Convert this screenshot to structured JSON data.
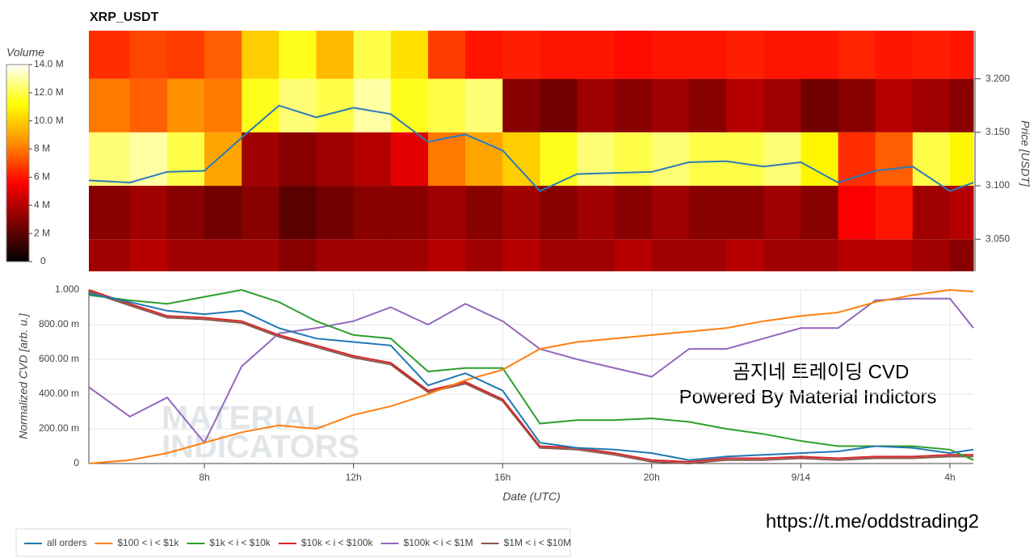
{
  "chart_data": [
    {
      "type": "heatmap",
      "title": "XRP_USDT",
      "y_label": "Price [USDT]",
      "colorbar_label": "Volume",
      "x_bins": [
        4.9,
        6,
        7,
        8,
        9,
        10,
        11,
        12,
        13,
        14,
        15,
        16,
        17,
        18,
        19,
        20,
        21,
        22,
        23,
        24,
        25,
        26,
        27,
        28,
        28.63
      ],
      "y_bins": [
        3.02,
        3.05,
        3.1,
        3.15,
        3.2,
        3.245
      ],
      "z": [
        [
          3.5,
          4,
          3.5,
          3.5,
          3.5,
          3,
          3.5,
          3.5,
          3.5,
          4,
          3.5,
          4,
          3.5,
          3.5,
          4,
          3.5,
          3.5,
          4,
          3.5,
          3.5,
          4,
          4,
          3.5,
          3
        ],
        [
          3,
          3.5,
          3,
          2.5,
          3,
          2,
          2.5,
          3,
          3,
          3.5,
          3,
          3.5,
          3,
          3.5,
          3,
          3.5,
          3,
          3,
          3.5,
          3,
          5.5,
          6,
          3.5,
          4
        ],
        [
          12.5,
          13,
          12,
          9,
          3.5,
          3,
          3.5,
          4,
          5,
          8,
          9,
          10,
          11.5,
          12.5,
          12,
          12.5,
          12,
          12,
          12.5,
          11,
          6.5,
          7.5,
          12,
          11
        ],
        [
          8,
          7.5,
          8.5,
          8,
          11.5,
          12.5,
          12,
          13,
          11.5,
          12,
          12.5,
          3,
          2.5,
          3.5,
          3,
          3.5,
          3,
          4,
          3.5,
          2.5,
          3,
          4,
          3.5,
          3
        ],
        [
          6.5,
          7,
          6.8,
          7.5,
          10,
          11.5,
          9.5,
          12,
          10.5,
          6.8,
          6,
          6.2,
          6,
          6,
          5.8,
          6,
          6,
          6.2,
          6,
          6,
          6.3,
          6,
          6.2,
          6
        ]
      ],
      "colormap": [
        "#000000",
        "#800000",
        "#ff0000",
        "#ff8c00",
        "#ffff00",
        "#ffffff"
      ],
      "clim": [
        0,
        14
      ],
      "cticks": [
        0,
        {
          "value": 2,
          "label": "2 M"
        },
        {
          "value": 4,
          "label": "4 M"
        },
        {
          "value": 6,
          "label": "6 M"
        },
        {
          "value": 8,
          "label": "8 M"
        },
        {
          "value": 10,
          "label": "10.0 M"
        },
        {
          "value": 12,
          "label": "12.0 M"
        },
        {
          "value": 14,
          "label": "14.0 M"
        }
      ],
      "x": [
        4.9,
        6,
        7,
        8,
        9,
        10,
        11,
        12,
        13,
        14,
        15,
        16,
        17,
        18,
        19,
        20,
        21,
        22,
        23,
        24,
        25,
        26,
        27,
        28,
        28.63
      ],
      "series": [
        {
          "color": "#2b7bb9",
          "values": [
            3.105,
            3.103,
            3.113,
            3.114,
            3.145,
            3.175,
            3.164,
            3.173,
            3.167,
            3.141,
            3.148,
            3.133,
            3.095,
            3.111,
            3.112,
            3.113,
            3.122,
            3.123,
            3.118,
            3.122,
            3.103,
            3.114,
            3.118,
            3.095,
            3.103
          ]
        }
      ],
      "xlim": [
        4.9,
        28.63
      ],
      "ylim": [
        3.02,
        3.245
      ],
      "yticks": [
        {
          "value": 3.05,
          "label": "3.050"
        },
        {
          "value": 3.1,
          "label": "3.100"
        },
        {
          "value": 3.15,
          "label": "3.150"
        },
        {
          "value": 3.2,
          "label": "3.200"
        }
      ]
    },
    {
      "type": "line",
      "x_label": "Date (UTC)",
      "y_label": "Normalized CVD [arb. u.]",
      "x": [
        4.9,
        6,
        7,
        8,
        9,
        10,
        11,
        12,
        13,
        14,
        15,
        16,
        17,
        18,
        19,
        20,
        21,
        22,
        23,
        24,
        25,
        26,
        27,
        28,
        28.63
      ],
      "series": [
        {
          "name": "all orders",
          "color": "#1f77b4",
          "values": [
            0.98,
            0.93,
            0.88,
            0.86,
            0.88,
            0.78,
            0.72,
            0.7,
            0.68,
            0.45,
            0.52,
            0.42,
            0.12,
            0.09,
            0.08,
            0.06,
            0.02,
            0.04,
            0.05,
            0.06,
            0.07,
            0.1,
            0.09,
            0.06,
            0.08
          ]
        },
        {
          "name": "$100 < i < $1k",
          "color": "#ff7f0e",
          "values": [
            0,
            0.02,
            0.06,
            0.12,
            0.18,
            0.22,
            0.2,
            0.28,
            0.33,
            0.4,
            0.48,
            0.54,
            0.66,
            0.7,
            0.72,
            0.74,
            0.76,
            0.78,
            0.82,
            0.85,
            0.87,
            0.93,
            0.97,
            1.0,
            0.99
          ]
        },
        {
          "name": "$1k < i < $10k",
          "color": "#2ca02c",
          "values": [
            0.97,
            0.94,
            0.92,
            0.96,
            1.0,
            0.93,
            0.82,
            0.74,
            0.72,
            0.53,
            0.55,
            0.55,
            0.23,
            0.25,
            0.25,
            0.26,
            0.24,
            0.2,
            0.17,
            0.13,
            0.1,
            0.1,
            0.1,
            0.08,
            0.02
          ]
        },
        {
          "name": "$10k < i < $100k",
          "color": "#d62728",
          "values": [
            1.0,
            0.92,
            0.85,
            0.84,
            0.82,
            0.74,
            0.68,
            0.62,
            0.58,
            0.42,
            0.47,
            0.37,
            0.1,
            0.09,
            0.06,
            0.02,
            0.01,
            0.03,
            0.03,
            0.04,
            0.03,
            0.04,
            0.04,
            0.05,
            0.05
          ]
        },
        {
          "name": "$100k < i < $1M",
          "color": "#9467bd",
          "values": [
            0.44,
            0.27,
            0.38,
            0.12,
            0.56,
            0.75,
            0.78,
            0.82,
            0.9,
            0.8,
            0.92,
            0.82,
            0.66,
            0.6,
            0.55,
            0.5,
            0.66,
            0.66,
            0.72,
            0.78,
            0.78,
            0.94,
            0.95,
            0.95,
            0.78
          ]
        },
        {
          "name": "$1M < i < $10M",
          "color": "#8c564b",
          "values": [
            0.99,
            0.91,
            0.84,
            0.83,
            0.81,
            0.73,
            0.67,
            0.61,
            0.57,
            0.41,
            0.46,
            0.36,
            0.09,
            0.08,
            0.05,
            0.01,
            0.0,
            0.02,
            0.02,
            0.03,
            0.02,
            0.03,
            0.03,
            0.04,
            0.04
          ]
        }
      ],
      "xlim": [
        4.9,
        28.63
      ],
      "xticks": [
        {
          "value": 8,
          "label": "8h"
        },
        {
          "value": 12,
          "label": "12h"
        },
        {
          "value": 16,
          "label": "16h"
        },
        {
          "value": 20,
          "label": "20h"
        },
        {
          "value": 24,
          "label": "9/14"
        },
        {
          "value": 28,
          "label": "4h"
        }
      ],
      "ylim": [
        0,
        1
      ],
      "yticks": [
        0,
        {
          "value": 0.2,
          "label": "200.00 m"
        },
        {
          "value": 0.4,
          "label": "400.00 m"
        },
        {
          "value": 0.6,
          "label": "600.00 m"
        },
        {
          "value": 0.8,
          "label": "800.00 m"
        },
        {
          "value": 1,
          "label": "1.000"
        }
      ],
      "grid": true,
      "annotations": [
        "곰지네 트레이딩 CVD",
        "Powered By Material Indictors",
        "MATERIAL",
        "INDICATORS",
        "https://t.me/oddstrading2"
      ]
    }
  ]
}
